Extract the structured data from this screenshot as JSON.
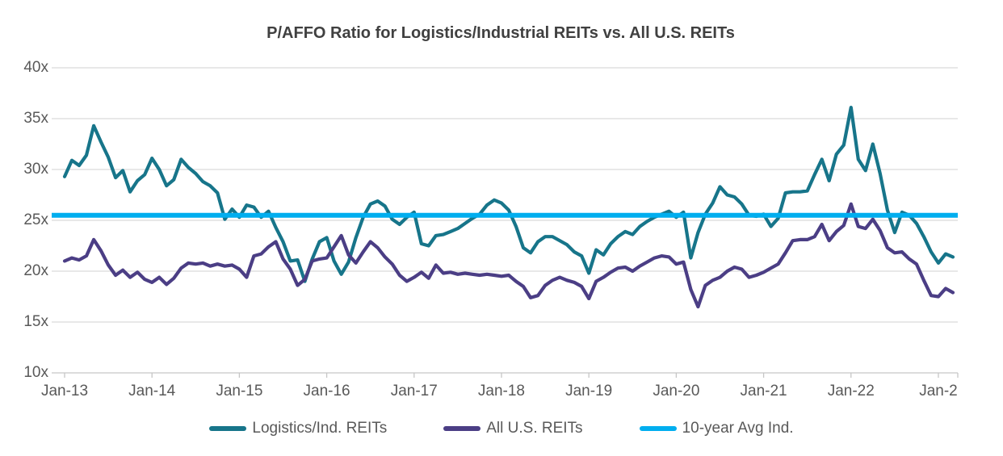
{
  "chart": {
    "title": "P/AFFO Ratio for Logistics/Industrial REITs vs. All U.S. REITs"
  },
  "chart_data": {
    "type": "line",
    "title": "P/AFFO Ratio for Logistics/Industrial REITs vs. All U.S. REITs",
    "x_unit": "month",
    "x_range_shown": [
      "Jan-13",
      "Mar-23"
    ],
    "x_axis": {
      "tick_labels": [
        "Jan-13",
        "Jan-14",
        "Jan-15",
        "Jan-16",
        "Jan-17",
        "Jan-18",
        "Jan-19",
        "Jan-20",
        "Jan-21",
        "Jan-22",
        "Jan-2"
      ]
    },
    "y_axis": {
      "min": 10,
      "max": 40,
      "tick_step": 5,
      "tick_labels": [
        "40x",
        "35x",
        "30x",
        "25x",
        "20x",
        "15x",
        "10x"
      ]
    },
    "gridlines": "horizontal",
    "gridline_color": "#D9D9D9",
    "axis_line_color": "#C6C6C6",
    "legend_position": "bottom",
    "series": [
      {
        "name": "Logistics/Ind. REITs",
        "color": "#17758A",
        "stroke_width": 4.2,
        "values": [
          29.3,
          30.9,
          30.4,
          31.4,
          34.3,
          32.7,
          31.2,
          29.2,
          29.9,
          27.8,
          28.9,
          29.5,
          31.1,
          30.0,
          28.4,
          29.0,
          31.0,
          30.2,
          29.6,
          28.8,
          28.4,
          27.7,
          25.1,
          26.1,
          25.3,
          26.5,
          26.3,
          25.3,
          25.9,
          24.3,
          22.9,
          21.0,
          21.1,
          19.0,
          21.2,
          22.9,
          23.3,
          21.0,
          19.7,
          20.9,
          23.3,
          25.3,
          26.6,
          26.9,
          26.4,
          25.1,
          24.6,
          25.3,
          25.8,
          22.7,
          22.5,
          23.5,
          23.6,
          23.9,
          24.2,
          24.7,
          25.2,
          25.6,
          26.5,
          27.0,
          26.7,
          26.0,
          24.4,
          22.3,
          21.8,
          22.9,
          23.4,
          23.4,
          23.0,
          22.6,
          21.9,
          21.5,
          19.8,
          22.1,
          21.6,
          22.7,
          23.4,
          23.9,
          23.6,
          24.4,
          24.9,
          25.3,
          25.6,
          25.9,
          25.3,
          25.8,
          21.3,
          23.8,
          25.6,
          26.7,
          28.3,
          27.5,
          27.3,
          26.6,
          25.5,
          25.4,
          25.6,
          24.4,
          25.2,
          27.7,
          27.8,
          27.8,
          27.9,
          29.5,
          31.0,
          28.9,
          31.5,
          32.4,
          36.1,
          31.0,
          29.9,
          32.5,
          29.6,
          26.0,
          23.8,
          25.8,
          25.5,
          24.7,
          23.4,
          21.9,
          20.8,
          21.7,
          21.4
        ]
      },
      {
        "name": "All U.S. REITs",
        "color": "#4B3E85",
        "stroke_width": 4.2,
        "values": [
          21.0,
          21.3,
          21.1,
          21.5,
          23.1,
          22.0,
          20.6,
          19.6,
          20.1,
          19.4,
          19.9,
          19.2,
          18.9,
          19.4,
          18.7,
          19.3,
          20.3,
          20.8,
          20.7,
          20.8,
          20.5,
          20.7,
          20.5,
          20.6,
          20.2,
          19.4,
          21.5,
          21.7,
          22.4,
          22.9,
          21.2,
          20.2,
          18.6,
          19.2,
          21.0,
          21.2,
          21.3,
          22.4,
          23.5,
          21.6,
          20.8,
          21.9,
          22.9,
          22.3,
          21.4,
          20.7,
          19.6,
          19.0,
          19.4,
          19.9,
          19.3,
          20.6,
          19.8,
          19.9,
          19.7,
          19.8,
          19.7,
          19.6,
          19.7,
          19.6,
          19.5,
          19.6,
          19.0,
          18.5,
          17.4,
          17.6,
          18.6,
          19.1,
          19.4,
          19.1,
          18.9,
          18.5,
          17.3,
          19.0,
          19.4,
          19.9,
          20.3,
          20.4,
          20.0,
          20.5,
          20.9,
          21.3,
          21.5,
          21.4,
          20.7,
          20.9,
          18.2,
          16.5,
          18.6,
          19.1,
          19.4,
          20.0,
          20.4,
          20.2,
          19.4,
          19.6,
          19.9,
          20.3,
          20.7,
          21.8,
          23.0,
          23.1,
          23.1,
          23.4,
          24.6,
          23.0,
          23.9,
          24.5,
          26.6,
          24.4,
          24.2,
          25.1,
          24.0,
          22.3,
          21.8,
          21.9,
          21.2,
          20.7,
          19.1,
          17.6,
          17.5,
          18.3,
          17.9
        ]
      },
      {
        "name": "10-year Avg Ind.",
        "color": "#00AEEF",
        "stroke_width": 6,
        "constant": 25.5
      }
    ]
  }
}
